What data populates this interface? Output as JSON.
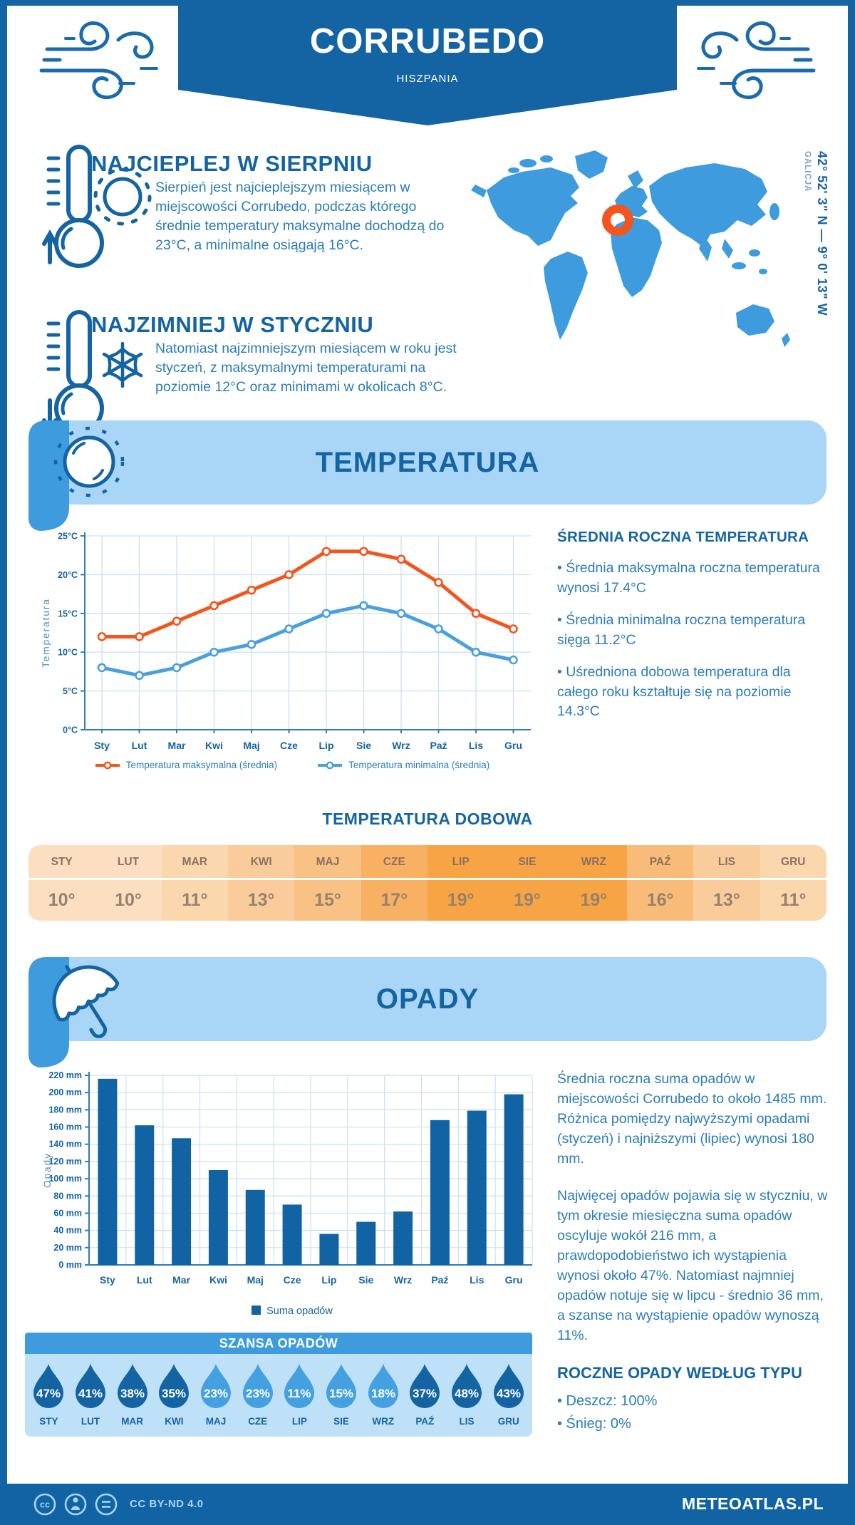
{
  "header": {
    "title": "CORRUBEDO",
    "subtitle": "HISZPANIA"
  },
  "highlights": [
    {
      "title": "NAJCIEPLEJ W SIERPNIU",
      "text": "Sierpień jest najcieplejszym miesiącem w miejscowości Corrubedo, podczas którego średnie temperatury maksymalne dochodzą do 23°C, a minimalne osiągają 16°C."
    },
    {
      "title": "NAJZIMNIEJ W STYCZNIU",
      "text": "Natomiast najzimniejszym miesiącem w roku jest styczeń, z maksymalnymi temperaturami na poziomie 12°C oraz minimami w okolicach 8°C."
    }
  ],
  "map": {
    "coordinates": "42° 52' 3\" N — 9° 0' 13\" W",
    "region": "GALICJA",
    "map_color": "#3D9BDE",
    "marker_color": "#F4551C"
  },
  "temperature_section": {
    "banner_title": "TEMPERATURA",
    "annual": {
      "heading": "ŚREDNIA ROCZNA TEMPERATURA",
      "bullets": [
        "• Średnia maksymalna roczna temperatura wynosi 17.4°C",
        "• Średnia minimalna roczna temperatura sięga 11.2°C",
        "• Uśredniona dobowa temperatura dla całego roku kształtuje się na poziomie 14.3°C"
      ]
    },
    "daily": {
      "heading": "TEMPERATURA DOBOWA",
      "months": [
        "STY",
        "LUT",
        "MAR",
        "KWI",
        "MAJ",
        "CZE",
        "LIP",
        "SIE",
        "WRZ",
        "PAŹ",
        "LIS",
        "GRU"
      ],
      "values": [
        "10°",
        "10°",
        "11°",
        "13°",
        "15°",
        "17°",
        "19°",
        "19°",
        "19°",
        "16°",
        "13°",
        "11°"
      ],
      "cell_colors": [
        "#FCDFC0",
        "#FCDFC0",
        "#FBD7AE",
        "#FACC9B",
        "#F9C184",
        "#F8B062",
        "#F7A445",
        "#F7A445",
        "#F7A445",
        "#F9BC78",
        "#FACC9B",
        "#FBD7AE"
      ]
    }
  },
  "chart_data": [
    {
      "type": "line",
      "title": "TEMPERATURA",
      "x": [
        "Sty",
        "Lut",
        "Mar",
        "Kwi",
        "Maj",
        "Cze",
        "Lip",
        "Sie",
        "Wrz",
        "Paź",
        "Lis",
        "Gru"
      ],
      "ylabel": "Temperatura",
      "ylim": [
        0,
        25
      ],
      "yticks": [
        "0°C",
        "5°C",
        "10°C",
        "15°C",
        "20°C",
        "25°C"
      ],
      "grid": true,
      "legend_position": "bottom",
      "series": [
        {
          "name": "Temperatura maksymalna (średnia)",
          "color": "#F4551C",
          "values": [
            12,
            12,
            14,
            16,
            18,
            20,
            23,
            23,
            22,
            19,
            15,
            13
          ]
        },
        {
          "name": "Temperatura minimalna (średnia)",
          "color": "#4AA0DE",
          "values": [
            8,
            7,
            8,
            10,
            11,
            13,
            15,
            16,
            15,
            13,
            10,
            9
          ]
        }
      ]
    },
    {
      "type": "bar",
      "title": "OPADY",
      "categories": [
        "Sty",
        "Lut",
        "Mar",
        "Kwi",
        "Maj",
        "Cze",
        "Lip",
        "Sie",
        "Wrz",
        "Paź",
        "Lis",
        "Gru"
      ],
      "values": [
        216,
        162,
        147,
        110,
        87,
        70,
        36,
        50,
        62,
        168,
        179,
        198
      ],
      "ylabel": "Opady",
      "ylim": [
        0,
        220
      ],
      "ytick_step": 20,
      "ytick_suffix": " mm",
      "grid": true,
      "bar_color": "#1263A4",
      "legend": "Suma opadów"
    }
  ],
  "precipitation_section": {
    "banner_title": "OPADY",
    "paragraphs": [
      "Średnia roczna suma opadów w miejscowości Corrubedo to około 1485 mm. Różnica pomiędzy najwyższymi opadami (styczeń) i najniższymi (lipiec) wynosi 180 mm.",
      "Najwięcej opadów pojawia się w styczniu, w tym okresie miesięczna suma opadów oscyluje wokół 216 mm, a prawdopodobieństwo ich wystąpienia wynosi około 47%. Natomiast najmniej opadów notuje się w lipcu - średnio 36 mm, a szanse na wystąpienie opadów wynoszą 11%."
    ],
    "type_heading": "ROCZNE OPADY WEDŁUG TYPU",
    "type_bullets": [
      "• Deszcz: 100%",
      "• Śnieg: 0%"
    ],
    "chance": {
      "heading": "SZANSA OPADÓW",
      "months": [
        "STY",
        "LUT",
        "MAR",
        "KWI",
        "MAJ",
        "CZE",
        "LIP",
        "SIE",
        "WRZ",
        "PAŹ",
        "LIS",
        "GRU"
      ],
      "values": [
        "47%",
        "41%",
        "38%",
        "35%",
        "23%",
        "23%",
        "11%",
        "15%",
        "18%",
        "37%",
        "48%",
        "43%"
      ],
      "dark": [
        1,
        1,
        1,
        1,
        0,
        0,
        0,
        0,
        0,
        1,
        1,
        1
      ],
      "drop_dark_color": "#1464A4",
      "drop_light_color": "#44A0E0"
    }
  },
  "footer": {
    "license": "CC BY-ND 4.0",
    "brand": "METEOATLAS.PL"
  }
}
